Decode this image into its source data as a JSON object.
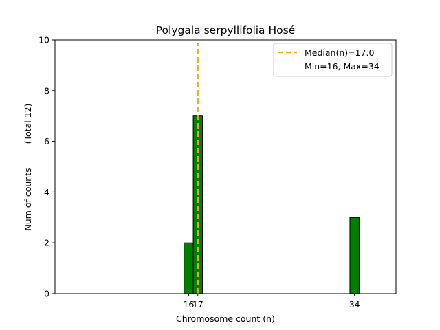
{
  "chart_data": {
    "type": "bar",
    "title": "Polygala serpyllifolia Hosé",
    "xlabel": "Chromosome count (n)",
    "ylabel_left": "Num of counts",
    "ylabel_right": "(Total 12)",
    "xlim": [
      1.5,
      38.5
    ],
    "ylim": [
      0,
      10
    ],
    "x_ticks": [
      16,
      17,
      34
    ],
    "y_ticks": [
      0,
      2,
      4,
      6,
      8,
      10
    ],
    "bars": [
      {
        "x": 16,
        "value": 2
      },
      {
        "x": 17,
        "value": 7
      },
      {
        "x": 34,
        "value": 3
      }
    ],
    "baseline_end": 37,
    "bar_width": 1,
    "bar_color": "#008000",
    "median": 17.0,
    "median_color": "#ffa500",
    "legend": {
      "placement": "top-right",
      "entries": [
        "Median(n)=17.0",
        "Min=16, Max=34"
      ]
    },
    "grid": false
  }
}
